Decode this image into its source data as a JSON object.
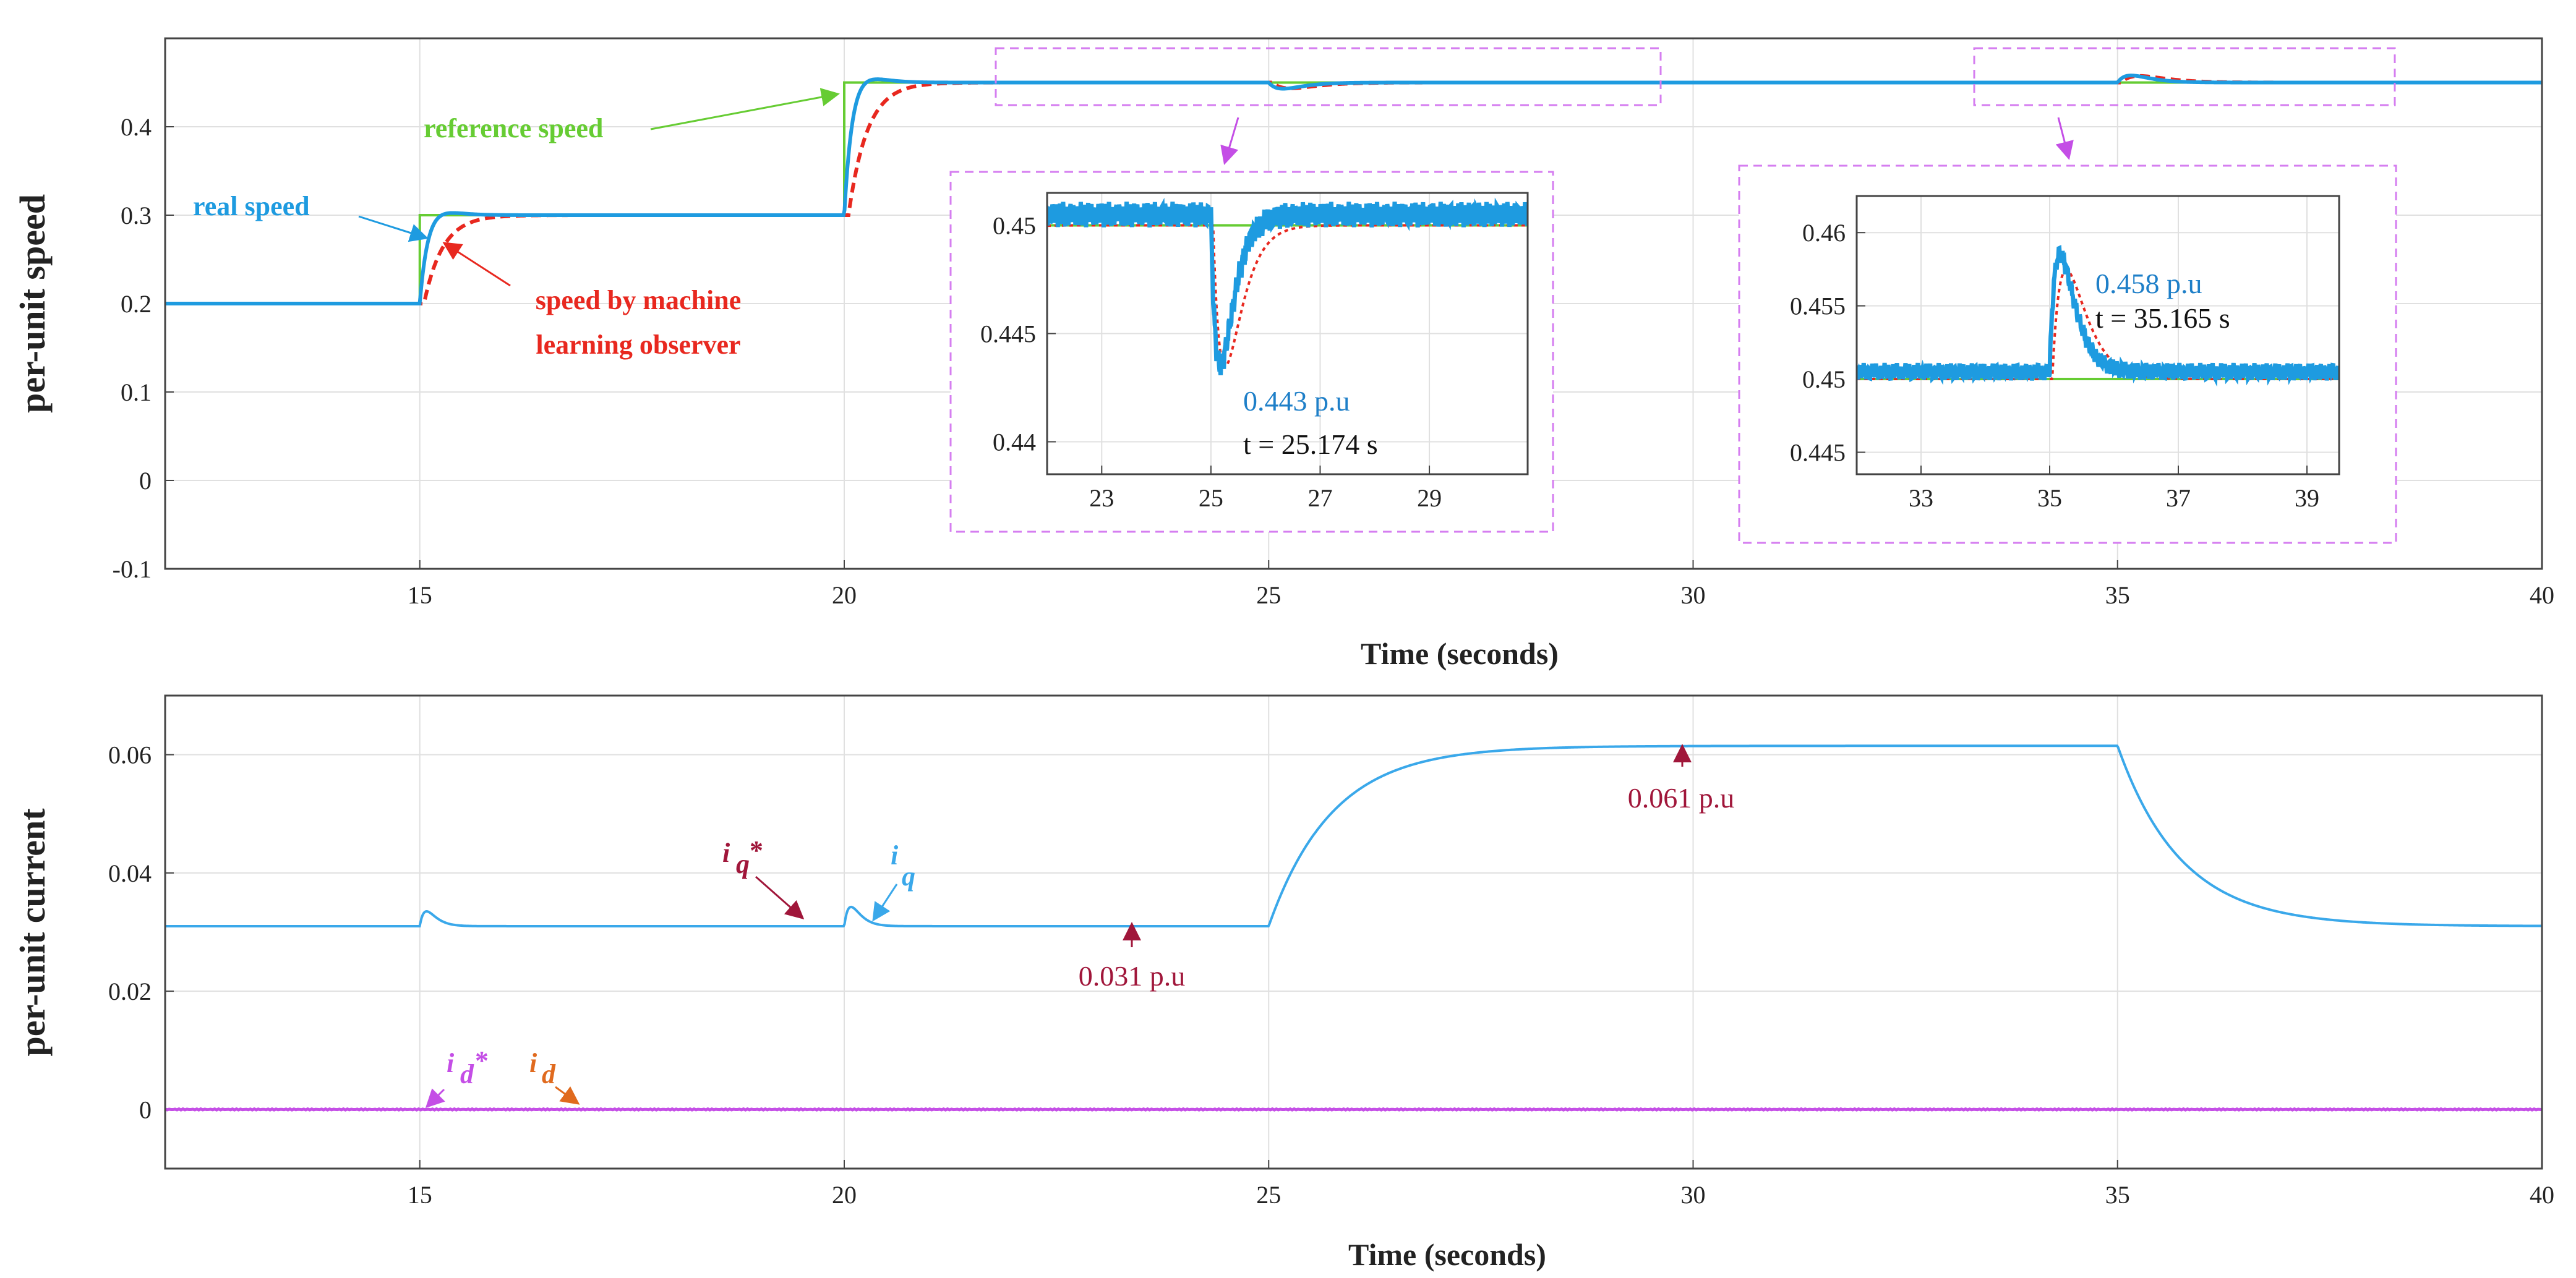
{
  "colors": {
    "reference": "#66cc33",
    "real": "#1e9be0",
    "observer": "#e8281f",
    "iq": "#3aa8ea",
    "id_ref": "#c44ee6",
    "id": "#e06a1e",
    "annot_red": "#a0163a",
    "inset_border": "#d57ef0",
    "grid": "#e0e0e0"
  },
  "chart_data": [
    {
      "id": "speed",
      "type": "line",
      "xlabel": "Time (seconds)",
      "ylabel": "per-unit speed",
      "xlim": [
        12,
        40
      ],
      "ylim": [
        -0.1,
        0.5
      ],
      "xticks": [
        15,
        20,
        25,
        30,
        35,
        40
      ],
      "yticks": [
        -0.1,
        0,
        0.1,
        0.2,
        0.3,
        0.4
      ],
      "ytick_labels": [
        "-0.1",
        "0",
        "0.1",
        "0.2",
        "0.3",
        "0.4"
      ],
      "grid": true,
      "steps": [
        [
          12,
          0.2
        ],
        [
          15,
          0.3
        ],
        [
          20,
          0.45
        ]
      ],
      "disturbances": [
        {
          "t": 25,
          "min": 0.443
        },
        {
          "t": 35,
          "max": 0.458
        }
      ],
      "series": [
        {
          "name": "reference speed",
          "color_key": "reference",
          "style": "solid"
        },
        {
          "name": "real speed",
          "color_key": "real",
          "style": "solid"
        },
        {
          "name": "speed by machine learning observer",
          "color_key": "observer",
          "style": "dashed"
        }
      ],
      "annotations": {
        "reference": "reference speed",
        "real": "real speed",
        "observer_line1": "speed by machine",
        "observer_line2": "learning observer"
      },
      "insets": [
        {
          "id": "inset-dip",
          "xlim": [
            22,
            30.8
          ],
          "ylim": [
            0.4385,
            0.4515
          ],
          "xticks": [
            23,
            25,
            27,
            29
          ],
          "yticks": [
            0.44,
            0.445,
            0.45
          ],
          "ytick_labels": [
            "0.44",
            "0.445",
            "0.45"
          ],
          "event_t": 25,
          "extreme": 0.443,
          "value_label": "0.443 p.u",
          "time_label": "t = 25.174 s"
        },
        {
          "id": "inset-peak",
          "xlim": [
            32,
            39.5
          ],
          "ylim": [
            0.4435,
            0.4625
          ],
          "xticks": [
            33,
            35,
            37,
            39
          ],
          "yticks": [
            0.445,
            0.45,
            0.455,
            0.46
          ],
          "ytick_labels": [
            "0.445",
            "0.45",
            "0.455",
            "0.46"
          ],
          "event_t": 35,
          "extreme": 0.458,
          "value_label": "0.458 p.u",
          "time_label": "t = 35.165 s"
        }
      ]
    },
    {
      "id": "current",
      "type": "line",
      "xlabel": "Time (seconds)",
      "ylabel": "per-unit current",
      "xlim": [
        12,
        40
      ],
      "ylim": [
        -0.01,
        0.07
      ],
      "xticks": [
        15,
        20,
        25,
        30,
        35,
        40
      ],
      "yticks": [
        0,
        0.02,
        0.04,
        0.06
      ],
      "ytick_labels": [
        "0",
        "0.02",
        "0.04",
        "0.06"
      ],
      "grid": true,
      "iq_base": 0.031,
      "iq_loaded": 0.0615,
      "load_on": 25,
      "load_off": 35,
      "series": [
        {
          "name": "i_q*",
          "color_key": "iq"
        },
        {
          "name": "i_q",
          "color_key": "iq"
        },
        {
          "name": "i_d*",
          "color_key": "id_ref"
        },
        {
          "name": "i_d",
          "color_key": "id"
        }
      ],
      "annotations": {
        "iq_low": "0.031 p.u",
        "iq_high": "0.061 p.u",
        "i": "i",
        "sub_q": "q",
        "sub_d": "d",
        "star": "*"
      }
    }
  ]
}
